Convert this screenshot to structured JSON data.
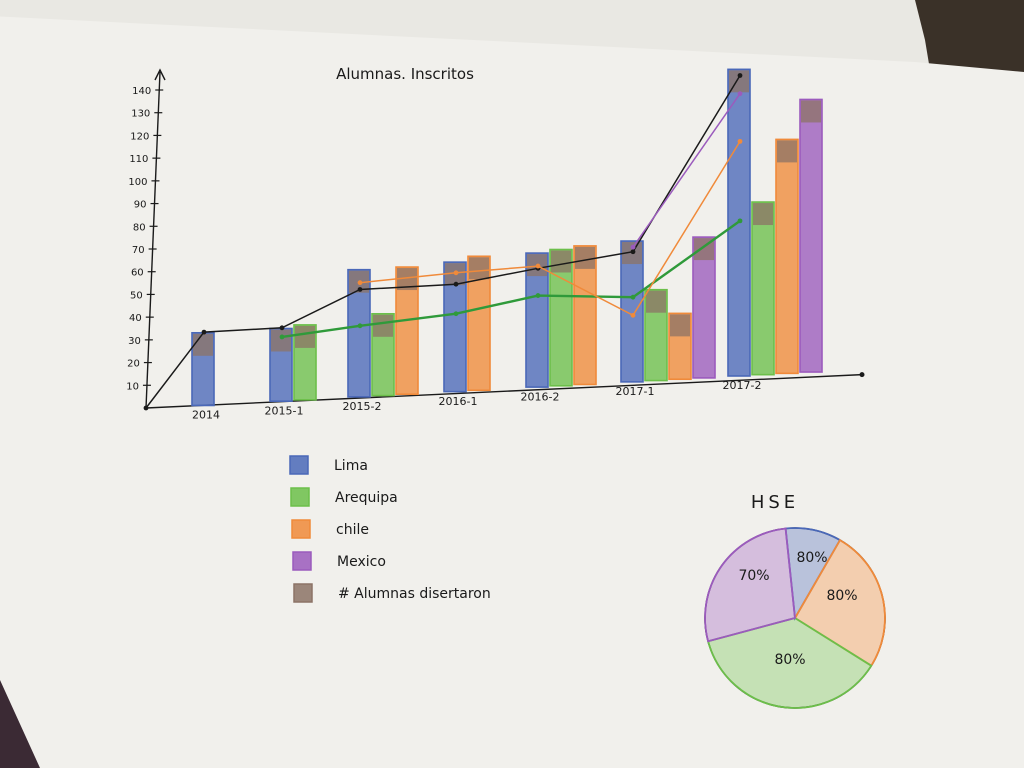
{
  "colors": {
    "Lima": "#4a68b8",
    "Arequipa": "#6cbf4a",
    "Chile": "#f08a3a",
    "Mexico": "#9b5bbd",
    "disertaron": "#8c7366",
    "paper": "#f1f0ec",
    "ink": "#1a1a1a",
    "green_line": "#2f9a3a"
  },
  "legend": [
    {
      "key": "Lima",
      "label": "Lima"
    },
    {
      "key": "Arequipa",
      "label": "Arequipa"
    },
    {
      "key": "Chile",
      "label": "chile"
    },
    {
      "key": "Mexico",
      "label": "Mexico"
    },
    {
      "key": "disertaron",
      "label": "# Alumnas disertaron"
    }
  ],
  "chart_data": [
    {
      "type": "bar",
      "title": "Alumnas. Inscritos",
      "ylim": [
        0,
        140
      ],
      "yticks": [
        "10",
        "20",
        "30",
        "40",
        "50",
        "60",
        "70",
        "80",
        "90",
        "100",
        "110",
        "120",
        "130",
        "140"
      ],
      "categories": [
        "2014",
        "2015-1",
        "2015-2",
        "2016-1",
        "2016-2",
        "2017-1",
        "2017-2"
      ],
      "series": [
        {
          "name": "Lima",
          "values": [
            32,
            32,
            56,
            57,
            59,
            62,
            135
          ]
        },
        {
          "name": "Arequipa",
          "values": [
            null,
            33,
            36,
            null,
            60,
            40,
            76
          ]
        },
        {
          "name": "Chile",
          "values": [
            null,
            null,
            56,
            59,
            61,
            29,
            103
          ]
        },
        {
          "name": "Mexico",
          "values": [
            null,
            null,
            null,
            null,
            null,
            62,
            120
          ]
        }
      ],
      "lines": [
        {
          "series": "Lima",
          "values": [
            32,
            32,
            47,
            47,
            52,
            57,
            132
          ]
        },
        {
          "series": "Arequipa",
          "values": [
            null,
            28,
            31,
            34,
            40,
            37,
            68
          ]
        },
        {
          "series": "Chile",
          "values": [
            null,
            null,
            50,
            52,
            53,
            29,
            103
          ]
        },
        {
          "series": "Mexico",
          "values": [
            null,
            null,
            null,
            null,
            null,
            59,
            124
          ]
        }
      ],
      "grid": false,
      "legend_position": "bottom-left"
    },
    {
      "type": "pie",
      "title": "HSE",
      "slices": [
        {
          "label": "80%",
          "series": "Lima"
        },
        {
          "label": "80%",
          "series": "Chile"
        },
        {
          "label": "80%",
          "series": "Arequipa"
        },
        {
          "label": "70%",
          "series": "Mexico"
        }
      ]
    }
  ]
}
